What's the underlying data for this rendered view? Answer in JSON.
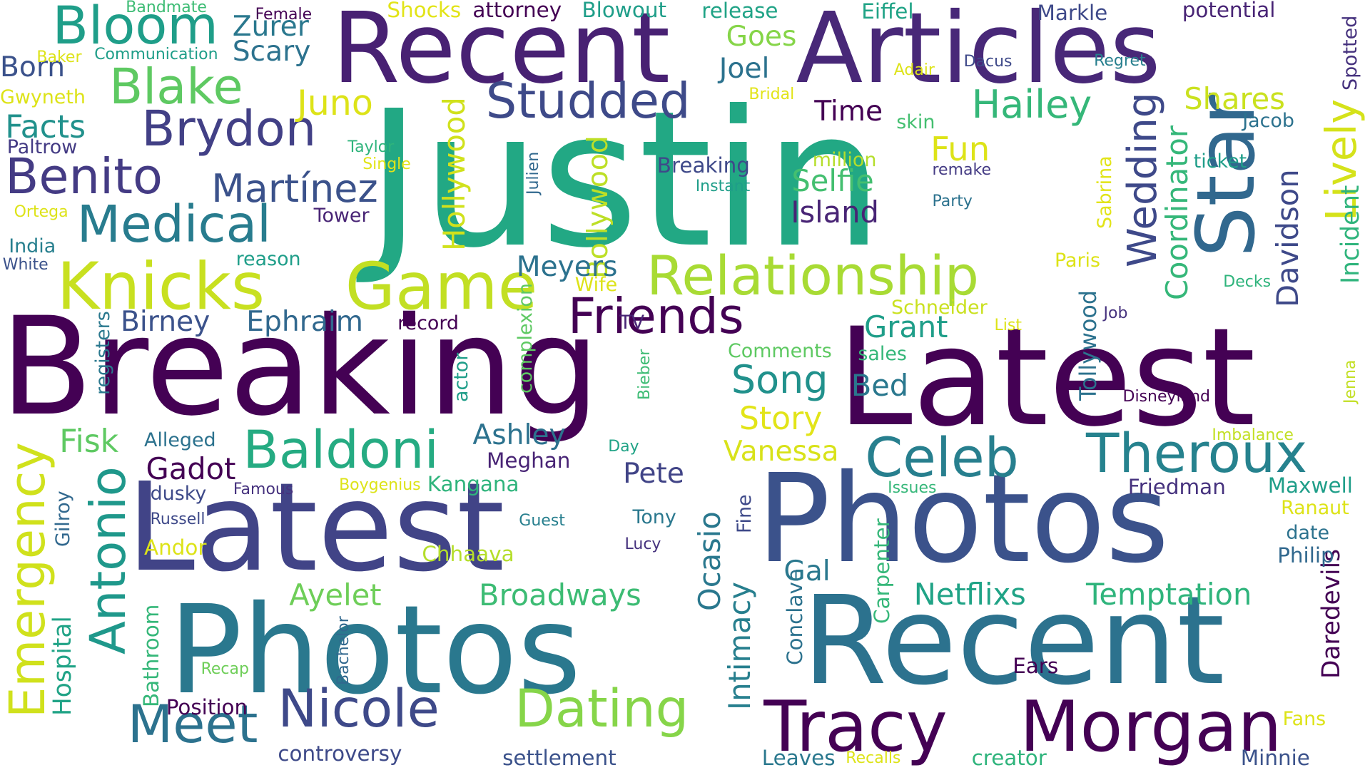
{
  "word_cloud": {
    "palette": "viridis",
    "background": "#ffffff",
    "words": [
      {
        "text": "Justin",
        "color": "#22a884"
      },
      {
        "text": "Breaking",
        "color": "#440154"
      },
      {
        "text": "Latest",
        "color": "#440154"
      },
      {
        "text": "Latest",
        "color": "#414487"
      },
      {
        "text": "Photos",
        "color": "#3b528b"
      },
      {
        "text": "Photos",
        "color": "#2a788e"
      },
      {
        "text": "Recent",
        "color": "#2c728e"
      },
      {
        "text": "Recent",
        "color": "#482173"
      },
      {
        "text": "Articles",
        "color": "#482878"
      },
      {
        "text": "Star",
        "color": "#31688e"
      },
      {
        "text": "Tracy",
        "color": "#440154"
      },
      {
        "text": "Morgan",
        "color": "#440154"
      },
      {
        "text": "Knicks",
        "color": "#c8e020"
      },
      {
        "text": "Game",
        "color": "#c2df23"
      },
      {
        "text": "Relationship",
        "color": "#a8db34"
      },
      {
        "text": "Celeb",
        "color": "#277f8e"
      },
      {
        "text": "Theroux",
        "color": "#26828e"
      },
      {
        "text": "Baldoni",
        "color": "#25ab82"
      },
      {
        "text": "Nicole",
        "color": "#3e4989"
      },
      {
        "text": "Dating",
        "color": "#86d549"
      },
      {
        "text": "Meet",
        "color": "#2c728e"
      },
      {
        "text": "Emergency",
        "color": "#d0e11c"
      },
      {
        "text": "Antonio",
        "color": "#1f988b"
      },
      {
        "text": "Studded",
        "color": "#3e4a89"
      },
      {
        "text": "Brydon",
        "color": "#424086"
      },
      {
        "text": "Benito",
        "color": "#443b84"
      },
      {
        "text": "Martínez",
        "color": "#3b528b"
      },
      {
        "text": "Medical",
        "color": "#287c8e"
      },
      {
        "text": "Bloom",
        "color": "#1f9e89"
      },
      {
        "text": "Blake",
        "color": "#5ec962"
      },
      {
        "text": "Wedding",
        "color": "#3e4989"
      },
      {
        "text": "Lively",
        "color": "#d5e21a"
      },
      {
        "text": "Friends",
        "color": "#440154"
      },
      {
        "text": "Island",
        "color": "#482475"
      },
      {
        "text": "Selfie",
        "color": "#44bf70"
      },
      {
        "text": "Hailey",
        "color": "#35b779"
      },
      {
        "text": "Song",
        "color": "#21918c"
      },
      {
        "text": "Story",
        "color": "#e2e418"
      },
      {
        "text": "Vanessa",
        "color": "#d8e219"
      },
      {
        "text": "Grant",
        "color": "#1f9e89"
      },
      {
        "text": "Bed",
        "color": "#2a788e"
      },
      {
        "text": "Netflixs",
        "color": "#20a386"
      },
      {
        "text": "Temptation",
        "color": "#2fb47c"
      },
      {
        "text": "Broadways",
        "color": "#3dbc74"
      },
      {
        "text": "Ayelet",
        "color": "#6ece58"
      },
      {
        "text": "Ocasio",
        "color": "#2a788e"
      },
      {
        "text": "Intimacy",
        "color": "#277f8e"
      },
      {
        "text": "Davidson",
        "color": "#3e4989"
      },
      {
        "text": "Coordinator",
        "color": "#35b779"
      },
      {
        "text": "Incident",
        "color": "#2fb47c"
      },
      {
        "text": "Daredevils",
        "color": "#440154"
      },
      {
        "text": "Hospital",
        "color": "#20a386"
      },
      {
        "text": "Bathroom",
        "color": "#35b779"
      },
      {
        "text": "Juno",
        "color": "#dde318"
      },
      {
        "text": "Hollywood",
        "color": "#d0e11c"
      },
      {
        "text": "Bollywood",
        "color": "#bddf26"
      },
      {
        "text": "Tollywood",
        "color": "#2c728e"
      },
      {
        "text": "Shares",
        "color": "#cae11f"
      },
      {
        "text": "Spotted",
        "color": "#46327e"
      },
      {
        "text": "Meyers",
        "color": "#2c728e"
      },
      {
        "text": "Birney",
        "color": "#3b528b"
      },
      {
        "text": "Ephraim",
        "color": "#31688e"
      },
      {
        "text": "Ashley",
        "color": "#2c728e"
      },
      {
        "text": "Gadot",
        "color": "#440154"
      },
      {
        "text": "Pete",
        "color": "#414487"
      },
      {
        "text": "Fisk",
        "color": "#5ec962"
      },
      {
        "text": "Facts",
        "color": "#21918c"
      },
      {
        "text": "Born",
        "color": "#3b528b"
      },
      {
        "text": "Scary",
        "color": "#2c728e"
      },
      {
        "text": "Zurer",
        "color": "#2a788e"
      },
      {
        "text": "Goes",
        "color": "#86d549"
      },
      {
        "text": "Joel",
        "color": "#2c728e"
      },
      {
        "text": "Time",
        "color": "#440154"
      },
      {
        "text": "Fun",
        "color": "#dde318"
      },
      {
        "text": "Eiffel",
        "color": "#20a386"
      },
      {
        "text": "Markle",
        "color": "#3e4989"
      },
      {
        "text": "Sabrina",
        "color": "#e2e418"
      },
      {
        "text": "Carpenter",
        "color": "#35b779"
      },
      {
        "text": "Conclave",
        "color": "#2c728e"
      },
      {
        "text": "Gal",
        "color": "#2a788e"
      },
      {
        "text": "Kangana",
        "color": "#2fb47c"
      },
      {
        "text": "Meghan",
        "color": "#482475"
      },
      {
        "text": "Chhaava",
        "color": "#b5de2b"
      },
      {
        "text": "Andor",
        "color": "#dde318"
      },
      {
        "text": "Gilroy",
        "color": "#31688e"
      },
      {
        "text": "Position",
        "color": "#440154"
      },
      {
        "text": "controversy",
        "color": "#3e4a89"
      },
      {
        "text": "settlement",
        "color": "#3b528b"
      },
      {
        "text": "Leaves",
        "color": "#2a788e"
      },
      {
        "text": "Recalls",
        "color": "#dde318"
      },
      {
        "text": "creator",
        "color": "#2fb47c"
      },
      {
        "text": "Minnie",
        "color": "#3b528b"
      },
      {
        "text": "Fans",
        "color": "#dde318"
      },
      {
        "text": "Ears",
        "color": "#440154"
      },
      {
        "text": "Philip",
        "color": "#31688e"
      },
      {
        "text": "date",
        "color": "#2c728e"
      },
      {
        "text": "Ranaut",
        "color": "#dde318"
      },
      {
        "text": "Maxwell",
        "color": "#1f9e89"
      },
      {
        "text": "Friedman",
        "color": "#46327e"
      },
      {
        "text": "Issues",
        "color": "#35b779"
      },
      {
        "text": "Imbalance",
        "color": "#c2df23"
      },
      {
        "text": "Disneyland",
        "color": "#440154"
      },
      {
        "text": "Jenna",
        "color": "#c2df23"
      },
      {
        "text": "Bieber",
        "color": "#3dbc74"
      },
      {
        "text": "TV",
        "color": "#482475"
      },
      {
        "text": "Comments",
        "color": "#5ec962"
      },
      {
        "text": "sales",
        "color": "#35b779"
      },
      {
        "text": "Schneider",
        "color": "#cae11f"
      },
      {
        "text": "List",
        "color": "#dde318"
      },
      {
        "text": "Job",
        "color": "#46327e"
      },
      {
        "text": "Decks",
        "color": "#2fb47c"
      },
      {
        "text": "Paris",
        "color": "#dde318"
      },
      {
        "text": "Wife",
        "color": "#dde318"
      },
      {
        "text": "record",
        "color": "#440154"
      },
      {
        "text": "complexion",
        "color": "#5ec962"
      },
      {
        "text": "actor",
        "color": "#1f9e89"
      },
      {
        "text": "registers",
        "color": "#2a788e"
      },
      {
        "text": "reason",
        "color": "#1f9e89"
      },
      {
        "text": "Tower",
        "color": "#482475"
      },
      {
        "text": "Julien",
        "color": "#31688e"
      },
      {
        "text": "Breaking",
        "color": "#3e4989"
      },
      {
        "text": "Instant",
        "color": "#1f9e89"
      },
      {
        "text": "million",
        "color": "#b5de2b"
      },
      {
        "text": "remake",
        "color": "#443b84"
      },
      {
        "text": "Party",
        "color": "#2c728e"
      },
      {
        "text": "ticket",
        "color": "#1f9e89"
      },
      {
        "text": "Jacob",
        "color": "#2c728e"
      },
      {
        "text": "skin",
        "color": "#44bf70"
      },
      {
        "text": "Bridal",
        "color": "#e2e418"
      },
      {
        "text": "Adair",
        "color": "#dde318"
      },
      {
        "text": "Dacus",
        "color": "#3e4989"
      },
      {
        "text": "Regret",
        "color": "#277f8e"
      },
      {
        "text": "potential",
        "color": "#482475"
      },
      {
        "text": "release",
        "color": "#20a386"
      },
      {
        "text": "Blowout",
        "color": "#1f9e89"
      },
      {
        "text": "attorney",
        "color": "#440154"
      },
      {
        "text": "Shocks",
        "color": "#e2e418"
      },
      {
        "text": "Female",
        "color": "#440154"
      },
      {
        "text": "Bandmate",
        "color": "#3dbc74"
      },
      {
        "text": "Baker",
        "color": "#dde318"
      },
      {
        "text": "Communication",
        "color": "#1f9e89"
      },
      {
        "text": "Gwyneth",
        "color": "#dde318"
      },
      {
        "text": "Paltrow",
        "color": "#443b84"
      },
      {
        "text": "Taylor",
        "color": "#2fb47c"
      },
      {
        "text": "Single",
        "color": "#e2e418"
      },
      {
        "text": "Ortega",
        "color": "#dde318"
      },
      {
        "text": "India",
        "color": "#277f8e"
      },
      {
        "text": "White",
        "color": "#3b528b"
      },
      {
        "text": "Alleged",
        "color": "#2c728e"
      },
      {
        "text": "dusky",
        "color": "#3e4a89"
      },
      {
        "text": "Famous",
        "color": "#46327e"
      },
      {
        "text": "Boygenius",
        "color": "#dde318"
      },
      {
        "text": "Russell",
        "color": "#3e4989"
      },
      {
        "text": "Guest",
        "color": "#277f8e"
      },
      {
        "text": "Tony",
        "color": "#2a788e"
      },
      {
        "text": "Lucy",
        "color": "#46327e"
      },
      {
        "text": "Day",
        "color": "#20a386"
      },
      {
        "text": "Fine",
        "color": "#3e4989"
      },
      {
        "text": "Recap",
        "color": "#6ece58"
      },
      {
        "text": "Bachelor",
        "color": "#31688e"
      }
    ]
  }
}
